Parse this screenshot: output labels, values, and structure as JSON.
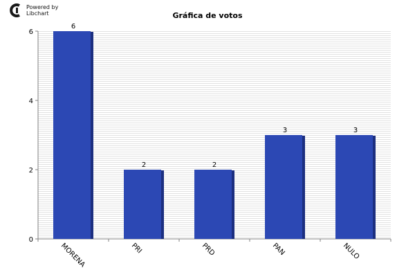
{
  "branding": {
    "powered_by": "Powered by",
    "product": "Libchart"
  },
  "chart_data": {
    "type": "bar",
    "title": "Gráfica de votos",
    "categories": [
      "MORENA",
      "PRI",
      "PRD",
      "PAN",
      "NULO"
    ],
    "values": [
      6,
      2,
      2,
      3,
      3
    ],
    "ylim": [
      0,
      6
    ],
    "yticks": [
      0,
      2,
      4,
      6
    ],
    "grid": true,
    "xlabel": "",
    "ylabel": "",
    "bar_color": "#2c48b4",
    "bar_shadow_color": "#1c2f80",
    "grid_color": "#e2e2e2"
  }
}
